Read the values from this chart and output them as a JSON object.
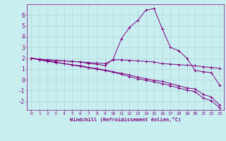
{
  "xlabel": "Windchill (Refroidissement éolien,°C)",
  "bg_color": "#c8eef0",
  "line_color": "#800080",
  "grid_color": "#b0d8dc",
  "xlim": [
    -0.5,
    23.5
  ],
  "ylim": [
    -2.8,
    7.0
  ],
  "xticks": [
    0,
    1,
    2,
    3,
    4,
    5,
    6,
    7,
    8,
    9,
    10,
    11,
    12,
    13,
    14,
    15,
    16,
    17,
    18,
    19,
    20,
    21,
    22,
    23
  ],
  "yticks": [
    -2,
    -1,
    0,
    1,
    2,
    3,
    4,
    5,
    6
  ],
  "series": [
    [
      2.0,
      1.9,
      1.85,
      1.8,
      1.75,
      1.7,
      1.65,
      1.6,
      1.55,
      1.5,
      1.85,
      1.85,
      1.8,
      1.75,
      1.7,
      1.65,
      1.5,
      1.45,
      1.4,
      1.35,
      1.3,
      1.2,
      1.15,
      1.05
    ],
    [
      2.0,
      1.9,
      1.85,
      1.8,
      1.75,
      1.7,
      1.65,
      1.5,
      1.45,
      1.3,
      1.9,
      3.8,
      4.85,
      5.5,
      6.45,
      6.6,
      4.7,
      3.0,
      2.7,
      2.0,
      0.85,
      0.75,
      0.65,
      -0.5
    ],
    [
      2.0,
      1.85,
      1.75,
      1.65,
      1.5,
      1.4,
      1.3,
      1.15,
      1.05,
      0.9,
      0.75,
      0.6,
      0.45,
      0.25,
      0.1,
      -0.05,
      -0.15,
      -0.35,
      -0.55,
      -0.75,
      -0.85,
      -1.35,
      -1.6,
      -2.35
    ],
    [
      2.0,
      1.85,
      1.7,
      1.6,
      1.5,
      1.35,
      1.25,
      1.1,
      1.0,
      0.85,
      0.7,
      0.5,
      0.3,
      0.1,
      -0.05,
      -0.2,
      -0.35,
      -0.55,
      -0.75,
      -0.95,
      -1.1,
      -1.7,
      -1.95,
      -2.6
    ]
  ]
}
